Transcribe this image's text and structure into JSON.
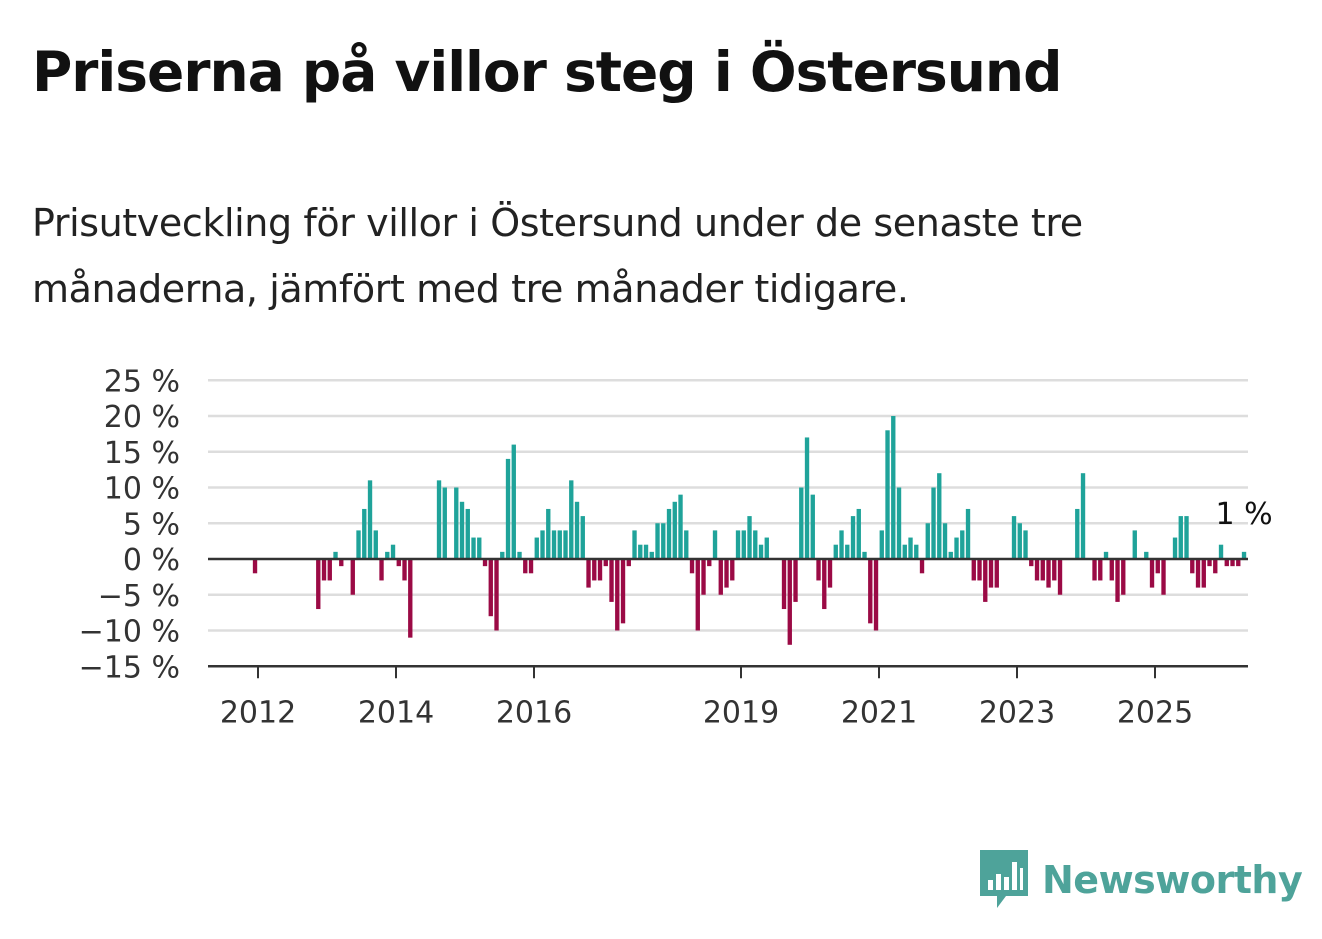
{
  "title": "Priserna på villor steg i Östersund",
  "subtitle": "Prisutveckling för villor i Östersund under de senaste tre månaderna, jämfört med tre månader tidigare.",
  "brand": {
    "name": "Newsworthy",
    "color": "#4ea39a"
  },
  "colors": {
    "positive": "#1fa39a",
    "negative": "#9b0a45",
    "grid": "#dddddd",
    "axis": "#333333"
  },
  "chart_data": {
    "type": "bar",
    "ylim": [
      -15,
      25
    ],
    "y_ticks": [
      25,
      20,
      15,
      10,
      5,
      0,
      -5,
      -10,
      -15
    ],
    "y_tick_labels": [
      "25 %",
      "20 %",
      "15 %",
      "10 %",
      "5 %",
      "0 %",
      "−5 %",
      "−10 %",
      "−15 %"
    ],
    "x_ticks": [
      2012,
      2014,
      2016,
      2019,
      2021,
      2023,
      2025
    ],
    "x_tick_labels": [
      "2012",
      "2014",
      "2016",
      "2019",
      "2021",
      "2023",
      "2025"
    ],
    "start_year": 2011.25,
    "annotation": "1 %",
    "values": [
      null,
      null,
      null,
      null,
      null,
      null,
      null,
      null,
      -2,
      null,
      null,
      null,
      null,
      null,
      null,
      null,
      null,
      null,
      null,
      -7,
      -3,
      -3,
      1,
      -1,
      null,
      -5,
      4,
      7,
      11,
      4,
      -3,
      1,
      2,
      -1,
      -3,
      -11,
      null,
      null,
      null,
      null,
      11,
      10,
      null,
      10,
      8,
      7,
      3,
      3,
      -1,
      -8,
      -10,
      1,
      14,
      16,
      1,
      -2,
      -2,
      3,
      4,
      7,
      4,
      4,
      4,
      11,
      8,
      6,
      -4,
      -3,
      -3,
      -1,
      -6,
      -10,
      -9,
      -1,
      4,
      2,
      2,
      1,
      5,
      5,
      7,
      8,
      9,
      4,
      -2,
      -10,
      -5,
      -1,
      4,
      -5,
      -4,
      -3,
      4,
      4,
      6,
      4,
      2,
      3,
      null,
      null,
      -7,
      -12,
      -6,
      10,
      17,
      9,
      -3,
      -7,
      -4,
      2,
      4,
      2,
      6,
      7,
      1,
      -9,
      -10,
      4,
      18,
      20,
      10,
      2,
      3,
      2,
      -2,
      5,
      10,
      12,
      5,
      1,
      3,
      4,
      7,
      -3,
      -3,
      -6,
      -4,
      -4,
      null,
      null,
      6,
      5,
      4,
      -1,
      -3,
      -3,
      -4,
      -3,
      -5,
      null,
      null,
      7,
      12,
      null,
      -3,
      -3,
      1,
      -3,
      -6,
      -5,
      null,
      4,
      null,
      1,
      -4,
      -2,
      -5,
      null,
      3,
      6,
      6,
      -2,
      -4,
      -4,
      -1,
      -2,
      2,
      -1,
      -1,
      -1,
      1
    ]
  }
}
